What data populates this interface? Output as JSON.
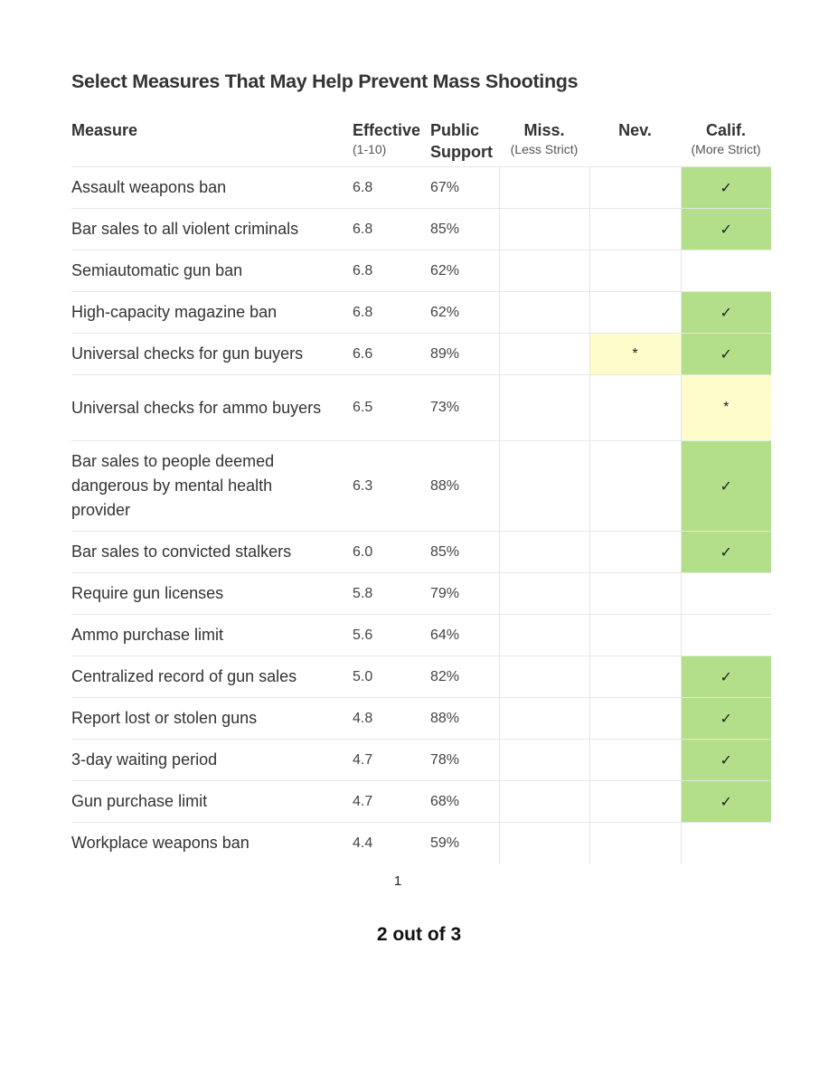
{
  "title": "Select Measures That May Help Prevent Mass Shootings",
  "headers": {
    "measure": "Measure",
    "effective": "Effective",
    "effective_sub": "(1-10)",
    "public_1": "Public",
    "public_2": "Support",
    "miss": "Miss.",
    "miss_sub": "(Less Strict)",
    "nev": "Nev.",
    "calif": "Calif.",
    "calif_sub": "(More Strict)"
  },
  "colors": {
    "check_green": "#b3df8a",
    "asterisk_yellow": "#fefcca",
    "grid": "#e6e6e6"
  },
  "rows": [
    {
      "measure": "Assault weapons ban",
      "effective": "6.8",
      "support": "67%",
      "miss": "",
      "nev": "",
      "calif": "✓"
    },
    {
      "measure": "Bar sales to all violent criminals",
      "effective": "6.8",
      "support": "85%",
      "miss": "",
      "nev": "",
      "calif": "✓"
    },
    {
      "measure": "Semiautomatic gun ban",
      "effective": "6.8",
      "support": "62%",
      "miss": "",
      "nev": "",
      "calif": ""
    },
    {
      "measure": "High-capacity magazine ban",
      "effective": "6.8",
      "support": "62%",
      "miss": "",
      "nev": "",
      "calif": "✓"
    },
    {
      "measure": "Universal checks for gun buyers",
      "effective": "6.6",
      "support": "89%",
      "miss": "",
      "nev": "*",
      "calif": "✓"
    },
    {
      "measure": "Universal checks for ammo buyers",
      "effective": "6.5",
      "support": "73%",
      "miss": "",
      "nev": "",
      "calif": "*"
    },
    {
      "measure": "Bar sales to people deemed dangerous by mental health provider",
      "effective": "6.3",
      "support": "88%",
      "miss": "",
      "nev": "",
      "calif": "✓"
    },
    {
      "measure": "Bar sales to convicted stalkers",
      "effective": "6.0",
      "support": "85%",
      "miss": "",
      "nev": "",
      "calif": "✓"
    },
    {
      "measure": "Require gun licenses",
      "effective": "5.8",
      "support": "79%",
      "miss": "",
      "nev": "",
      "calif": ""
    },
    {
      "measure": "Ammo purchase limit",
      "effective": "5.6",
      "support": "64%",
      "miss": "",
      "nev": "",
      "calif": ""
    },
    {
      "measure": "Centralized record of gun sales",
      "effective": "5.0",
      "support": "82%",
      "miss": "",
      "nev": "",
      "calif": "✓"
    },
    {
      "measure": "Report lost or stolen guns",
      "effective": "4.8",
      "support": "88%",
      "miss": "",
      "nev": "",
      "calif": "✓"
    },
    {
      "measure": "3-day waiting period",
      "effective": "4.7",
      "support": "78%",
      "miss": "",
      "nev": "",
      "calif": "✓"
    },
    {
      "measure": "Gun purchase limit",
      "effective": "4.7",
      "support": "68%",
      "miss": "",
      "nev": "",
      "calif": "✓"
    },
    {
      "measure": "Workplace weapons ban",
      "effective": "4.4",
      "support": "59%",
      "miss": "",
      "nev": "",
      "calif": ""
    }
  ],
  "page_number": "1",
  "pager_text": "2 out of 3"
}
